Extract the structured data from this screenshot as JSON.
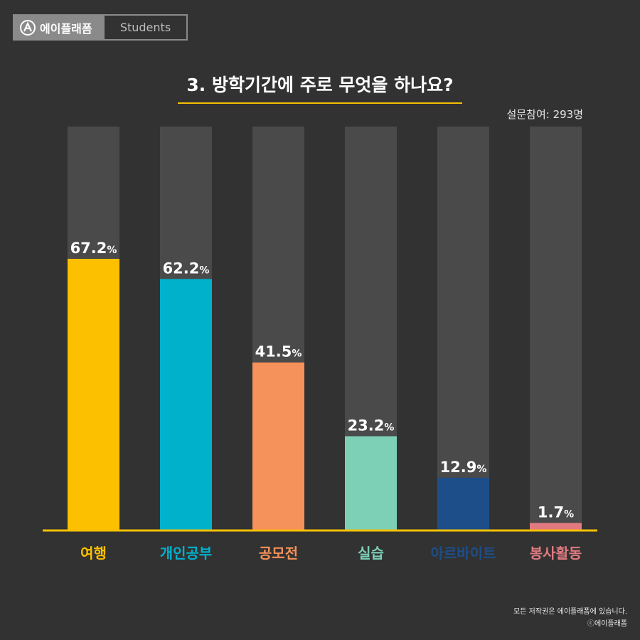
{
  "brand": {
    "name": "에이플래폼",
    "section": "Students"
  },
  "participants": "설문참여: 293명",
  "footer": {
    "line1": "모든 저작권은 에이플래폼에 있습니다.",
    "line2": "ⓒ에이플래폼"
  },
  "chart_data": {
    "type": "bar",
    "title": "3. 방학기간에 주로 무엇을 하나요?",
    "categories": [
      "여행",
      "개인공부",
      "공모전",
      "실습",
      "아르바이트",
      "봉사활동"
    ],
    "values": [
      67.2,
      62.2,
      41.5,
      23.2,
      12.9,
      1.7
    ],
    "value_labels": [
      "67.2",
      "62.2",
      "41.5",
      "23.2",
      "12.9",
      "1.7"
    ],
    "unit": "%",
    "ylim": [
      0,
      100
    ],
    "xlabel": "",
    "ylabel": "",
    "colors": [
      "#fcc000",
      "#00b1cc",
      "#f5915a",
      "#7dcfb6",
      "#1d4e8a",
      "#e07a80"
    ],
    "track_color": "#4a4a4a",
    "axis_color": "#f5c000"
  }
}
